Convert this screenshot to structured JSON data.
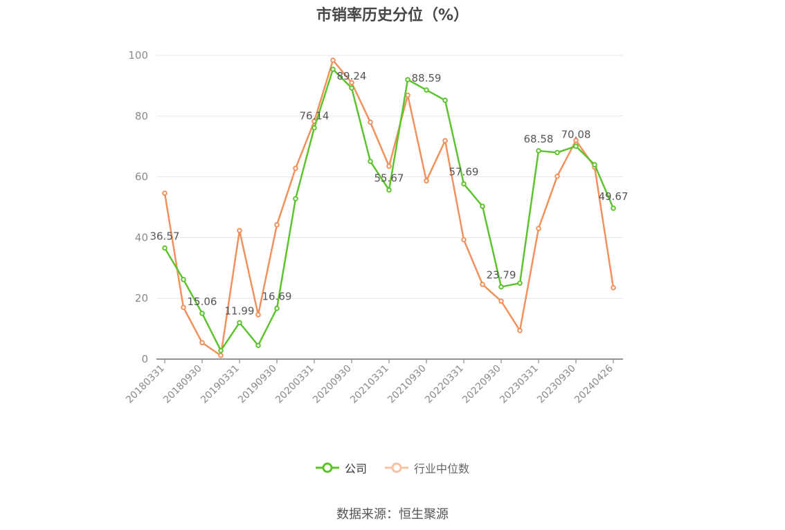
{
  "chart_data": {
    "type": "line",
    "title": "市销率历史分位（%）",
    "x": [
      "20180331",
      "20180630",
      "20180930",
      "20181231",
      "20190331",
      "20190630",
      "20190930",
      "20191231",
      "20200331",
      "20200630",
      "20200930",
      "20201231",
      "20210331",
      "20210630",
      "20210930",
      "20211231",
      "20220331",
      "20220630",
      "20220930",
      "20221231",
      "20230331",
      "20230630",
      "20230930",
      "20231231",
      "20240426"
    ],
    "x_tick_labels": [
      "20180331",
      "20180930",
      "20190331",
      "20190930",
      "20200331",
      "20200930",
      "20210331",
      "20210930",
      "20220331",
      "20220930",
      "20230331",
      "20230930",
      "20240426"
    ],
    "y_ticks": [
      0,
      20,
      40,
      60,
      80,
      100
    ],
    "ylim": [
      0,
      100
    ],
    "grid": true,
    "legend_position": "bottom",
    "series": [
      {
        "name": "公司",
        "color": "#5cc32d",
        "values": [
          36.57,
          26.2,
          15.06,
          2.8,
          11.99,
          4.5,
          16.69,
          52.8,
          76.14,
          95.4,
          89.24,
          65.1,
          55.67,
          92.0,
          88.59,
          85.2,
          57.69,
          50.3,
          23.79,
          25.0,
          68.58,
          68.0,
          70.08,
          64.0,
          49.67
        ],
        "labels": [
          "36.57",
          null,
          "15.06",
          null,
          "11.99",
          null,
          "16.69",
          null,
          "76.14",
          null,
          "89.24",
          null,
          "55.67",
          null,
          "88.59",
          null,
          "57.69",
          null,
          "23.79",
          null,
          "68.58",
          null,
          "70.08",
          null,
          "49.67"
        ]
      },
      {
        "name": "行业中位数",
        "color": "#f0915b",
        "values": [
          54.6,
          17.0,
          5.4,
          1.2,
          42.3,
          14.6,
          44.2,
          62.8,
          78.3,
          98.4,
          91.0,
          78.0,
          63.5,
          86.9,
          58.7,
          71.9,
          39.3,
          24.6,
          19.1,
          9.4,
          43.0,
          60.2,
          72.0,
          63.2,
          23.5
        ]
      }
    ]
  },
  "legend": {
    "company": "公司",
    "industry": "行业中位数"
  },
  "source": "数据来源：恒生聚源"
}
